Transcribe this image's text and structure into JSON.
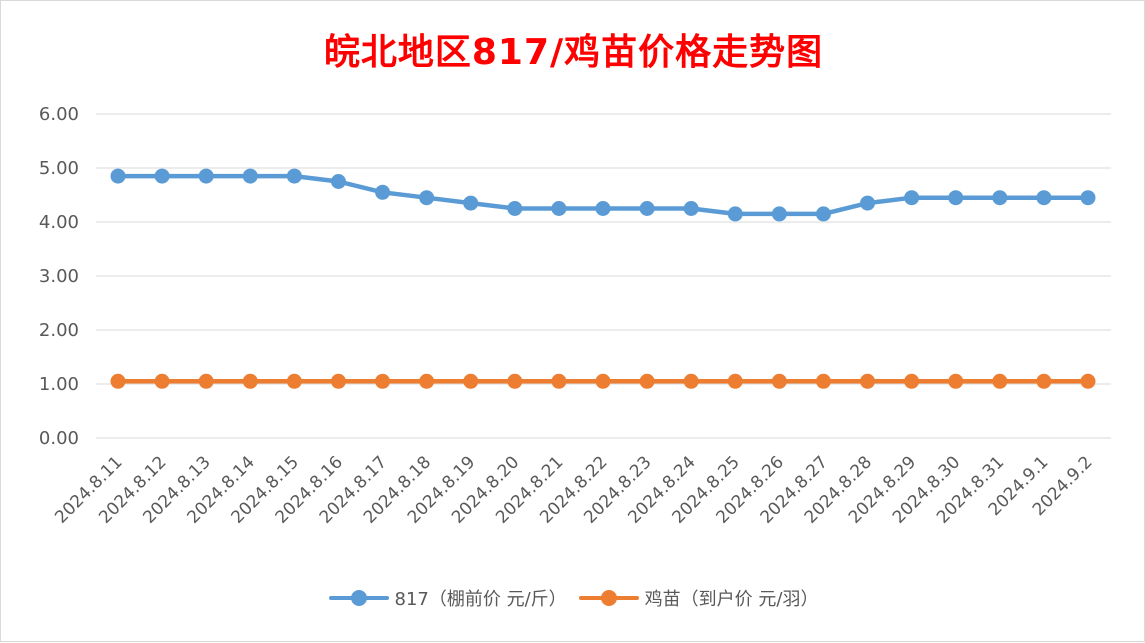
{
  "chart_data": {
    "type": "line",
    "title": "皖北地区817/鸡苗价格走势图",
    "categories": [
      "2024.8.11",
      "2024.8.12",
      "2024.8.13",
      "2024.8.14",
      "2024.8.15",
      "2024.8.16",
      "2024.8.17",
      "2024.8.18",
      "2024.8.19",
      "2024.8.20",
      "2024.8.21",
      "2024.8.22",
      "2024.8.23",
      "2024.8.24",
      "2024.8.25",
      "2024.8.26",
      "2024.8.27",
      "2024.8.28",
      "2024.8.29",
      "2024.8.30",
      "2024.8.31",
      "2024.9.1",
      "2024.9.2"
    ],
    "y_tick_labels": [
      "0.00",
      "1.00",
      "2.00",
      "3.00",
      "4.00",
      "5.00",
      "6.00"
    ],
    "ylim": [
      0,
      6
    ],
    "grid": true,
    "legend_position": "bottom",
    "series": [
      {
        "name": "817（棚前价 元/斤）",
        "color": "#5b9bd5",
        "values": [
          4.85,
          4.85,
          4.85,
          4.85,
          4.85,
          4.75,
          4.55,
          4.45,
          4.35,
          4.25,
          4.25,
          4.25,
          4.25,
          4.25,
          4.15,
          4.15,
          4.15,
          4.35,
          4.45,
          4.45,
          4.45,
          4.45,
          4.45
        ]
      },
      {
        "name": "鸡苗（到户价 元/羽）",
        "color": "#ed7d31",
        "values": [
          1.05,
          1.05,
          1.05,
          1.05,
          1.05,
          1.05,
          1.05,
          1.05,
          1.05,
          1.05,
          1.05,
          1.05,
          1.05,
          1.05,
          1.05,
          1.05,
          1.05,
          1.05,
          1.05,
          1.05,
          1.05,
          1.05,
          1.05
        ]
      }
    ]
  }
}
